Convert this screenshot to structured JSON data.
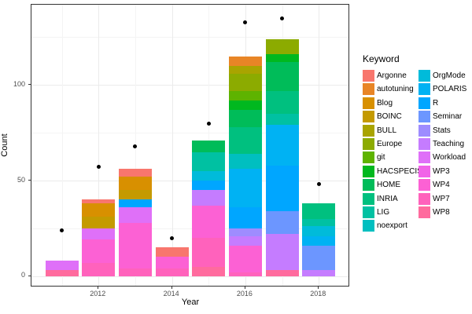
{
  "chart_data": {
    "type": "bar",
    "subtype": "stacked-bar-with-points",
    "title": "",
    "xlabel": "Year",
    "ylabel": "Count",
    "x_major": [
      2012,
      2014,
      2016,
      2018
    ],
    "x_minor": [
      2011,
      2013,
      2015,
      2017
    ],
    "x_tick_labels": [
      "2012",
      "2014",
      "2016",
      "2018"
    ],
    "y_major": [
      0,
      50,
      100
    ],
    "y_minor": [
      25,
      75,
      125
    ],
    "y_tick_labels": [
      "0",
      "50",
      "100"
    ],
    "xlim": [
      2010.2,
      2018.8
    ],
    "ylim": [
      0,
      142
    ],
    "grid": "on",
    "legend_position": "right",
    "keywords": [
      {
        "name": "Argonne",
        "color": "#F8766D"
      },
      {
        "name": "autotuning",
        "color": "#E88526"
      },
      {
        "name": "Blog",
        "color": "#D89000"
      },
      {
        "name": "BOINC",
        "color": "#C49A00"
      },
      {
        "name": "BULL",
        "color": "#A9A400"
      },
      {
        "name": "Europe",
        "color": "#8CAB00"
      },
      {
        "name": "git",
        "color": "#5EB300"
      },
      {
        "name": "HACSPECIS",
        "color": "#00B81F"
      },
      {
        "name": "HOME",
        "color": "#00BC59"
      },
      {
        "name": "INRIA",
        "color": "#00C07F"
      },
      {
        "name": "LIG",
        "color": "#00C1A2"
      },
      {
        "name": "noexport",
        "color": "#00BFC0"
      },
      {
        "name": "OrgMode",
        "color": "#00BBDA"
      },
      {
        "name": "POLARIS",
        "color": "#00B2F3"
      },
      {
        "name": "R",
        "color": "#00A6FF"
      },
      {
        "name": "Seminar",
        "color": "#6C96FF"
      },
      {
        "name": "Stats",
        "color": "#9E8CFF"
      },
      {
        "name": "Teaching",
        "color": "#C57CFF"
      },
      {
        "name": "Workload",
        "color": "#DF70F8"
      },
      {
        "name": "WP3",
        "color": "#F164E8"
      },
      {
        "name": "WP4",
        "color": "#FC61D4"
      },
      {
        "name": "WP7",
        "color": "#FF62BC"
      },
      {
        "name": "WP8",
        "color": "#FF6B9E"
      }
    ],
    "bars": [
      {
        "year": 2011,
        "total": 8,
        "dot": 24,
        "segments": [
          {
            "keyword": "WP8",
            "value": 3
          },
          {
            "keyword": "Workload",
            "value": 5
          }
        ]
      },
      {
        "year": 2012,
        "total": 40,
        "dot": 57,
        "segments": [
          {
            "keyword": "WP7",
            "value": 7
          },
          {
            "keyword": "WP4",
            "value": 12
          },
          {
            "keyword": "Workload",
            "value": 6
          },
          {
            "keyword": "BOINC",
            "value": 6
          },
          {
            "keyword": "Blog",
            "value": 7
          },
          {
            "keyword": "Argonne",
            "value": 2
          }
        ]
      },
      {
        "year": 2013,
        "total": 56,
        "dot": 68,
        "segments": [
          {
            "keyword": "WP7",
            "value": 4
          },
          {
            "keyword": "WP4",
            "value": 24
          },
          {
            "keyword": "Workload",
            "value": 8
          },
          {
            "keyword": "R",
            "value": 4
          },
          {
            "keyword": "BOINC",
            "value": 5
          },
          {
            "keyword": "Blog",
            "value": 7
          },
          {
            "keyword": "Argonne",
            "value": 4
          }
        ]
      },
      {
        "year": 2014,
        "total": 15,
        "dot": 20,
        "segments": [
          {
            "keyword": "WP7",
            "value": 4
          },
          {
            "keyword": "WP4",
            "value": 6
          },
          {
            "keyword": "Argonne",
            "value": 5
          }
        ]
      },
      {
        "year": 2015,
        "total": 71,
        "dot": 80,
        "segments": [
          {
            "keyword": "WP8",
            "value": 5
          },
          {
            "keyword": "WP7",
            "value": 15
          },
          {
            "keyword": "WP4",
            "value": 17
          },
          {
            "keyword": "Teaching",
            "value": 8
          },
          {
            "keyword": "R",
            "value": 5
          },
          {
            "keyword": "OrgMode",
            "value": 5
          },
          {
            "keyword": "LIG",
            "value": 10
          },
          {
            "keyword": "HOME",
            "value": 6
          }
        ]
      },
      {
        "year": 2016,
        "total": 115,
        "dot": 133,
        "segments": [
          {
            "keyword": "WP7",
            "value": 2
          },
          {
            "keyword": "WP4",
            "value": 14
          },
          {
            "keyword": "Teaching",
            "value": 5
          },
          {
            "keyword": "Stats",
            "value": 4
          },
          {
            "keyword": "R",
            "value": 11
          },
          {
            "keyword": "POLARIS",
            "value": 20
          },
          {
            "keyword": "noexport",
            "value": 8
          },
          {
            "keyword": "INRIA",
            "value": 14
          },
          {
            "keyword": "HOME",
            "value": 9
          },
          {
            "keyword": "HACSPECIS",
            "value": 5
          },
          {
            "keyword": "git",
            "value": 5
          },
          {
            "keyword": "Europe",
            "value": 9
          },
          {
            "keyword": "BULL",
            "value": 4
          },
          {
            "keyword": "autotuning",
            "value": 5
          }
        ]
      },
      {
        "year": 2017,
        "total": 124,
        "dot": 135,
        "segments": [
          {
            "keyword": "WP8",
            "value": 3
          },
          {
            "keyword": "Teaching",
            "value": 19
          },
          {
            "keyword": "Seminar",
            "value": 12
          },
          {
            "keyword": "R",
            "value": 24
          },
          {
            "keyword": "POLARIS",
            "value": 21
          },
          {
            "keyword": "LIG",
            "value": 6
          },
          {
            "keyword": "INRIA",
            "value": 12
          },
          {
            "keyword": "HOME",
            "value": 15
          },
          {
            "keyword": "HACSPECIS",
            "value": 4
          },
          {
            "keyword": "Europe",
            "value": 8
          }
        ]
      },
      {
        "year": 2018,
        "total": 38,
        "dot": 48,
        "segments": [
          {
            "keyword": "Teaching",
            "value": 3
          },
          {
            "keyword": "Seminar",
            "value": 13
          },
          {
            "keyword": "POLARIS",
            "value": 5
          },
          {
            "keyword": "OrgMode",
            "value": 5
          },
          {
            "keyword": "LIG",
            "value": 4
          },
          {
            "keyword": "INRIA",
            "value": 8
          }
        ]
      }
    ]
  },
  "legend": {
    "title": "Keyword",
    "columns": [
      [
        "Argonne",
        "autotuning",
        "Blog",
        "BOINC",
        "BULL",
        "Europe",
        "git",
        "HACSPECIS",
        "HOME",
        "INRIA",
        "LIG",
        "noexport"
      ],
      [
        "OrgMode",
        "POLARIS",
        "R",
        "Seminar",
        "Stats",
        "Teaching",
        "Workload",
        "WP3",
        "WP4",
        "WP7",
        "WP8"
      ]
    ]
  }
}
